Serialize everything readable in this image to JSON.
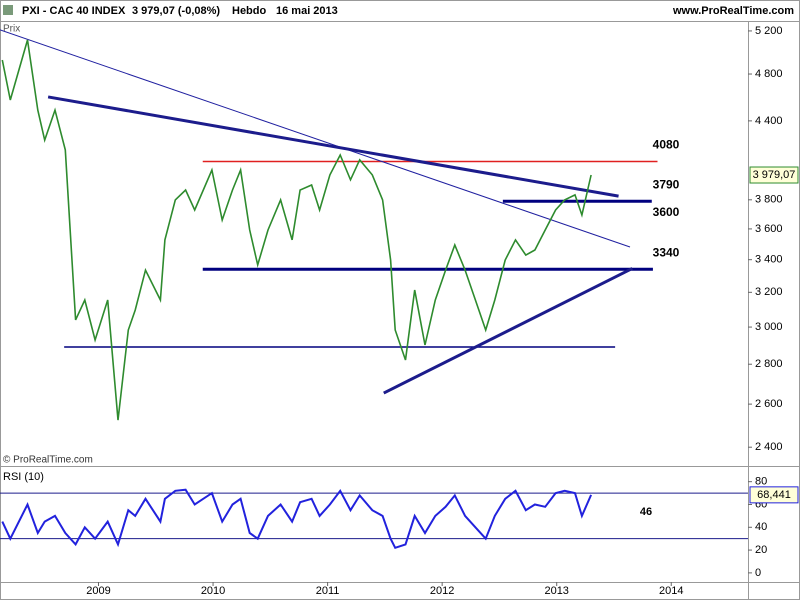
{
  "header": {
    "title": "PXI - CAC 40 INDEX",
    "last_quote": "3 979,07 (-0,08%)",
    "period": "Hebdo",
    "date": "16 mai 2013",
    "source": "www.ProRealTime.com"
  },
  "chart_data": [
    {
      "type": "line",
      "y_label": "Prix",
      "watermark": "© ProRealTime.com",
      "log_scale": true,
      "xlim": [
        2008.14,
        2014.67
      ],
      "ylim": [
        2322,
        5287
      ],
      "yticks": [
        {
          "value": 2400,
          "label": "2 400"
        },
        {
          "value": 2600,
          "label": "2 600"
        },
        {
          "value": 2800,
          "label": "2 800"
        },
        {
          "value": 3000,
          "label": "3 000"
        },
        {
          "value": 3200,
          "label": "3 200"
        },
        {
          "value": 3400,
          "label": "3 400"
        },
        {
          "value": 3600,
          "label": "3 600"
        },
        {
          "value": 3800,
          "label": "3 800"
        },
        {
          "value": 4400,
          "label": "4 400"
        },
        {
          "value": 4800,
          "label": "4 800"
        },
        {
          "value": 5200,
          "label": "5 200"
        }
      ],
      "x": [
        2008.16,
        2008.23,
        2008.38,
        2008.47,
        2008.53,
        2008.62,
        2008.71,
        2008.8,
        2008.88,
        2008.97,
        2009.08,
        2009.17,
        2009.26,
        2009.32,
        2009.41,
        2009.54,
        2009.58,
        2009.67,
        2009.76,
        2009.84,
        2009.99,
        2010.08,
        2010.17,
        2010.24,
        2010.32,
        2010.39,
        2010.48,
        2010.59,
        2010.69,
        2010.76,
        2010.86,
        2010.93,
        2011.02,
        2011.11,
        2011.2,
        2011.28,
        2011.39,
        2011.48,
        2011.55,
        2011.59,
        2011.68,
        2011.76,
        2011.85,
        2011.94,
        2012.03,
        2012.11,
        2012.2,
        2012.29,
        2012.38,
        2012.46,
        2012.55,
        2012.64,
        2012.73,
        2012.81,
        2012.9,
        2012.99,
        2013.07,
        2013.16,
        2013.22,
        2013.3
      ],
      "series": [
        {
          "color": "#2e8b2e",
          "values": [
            4927,
            4574,
            5113,
            4489,
            4246,
            4489,
            4169,
            3040,
            3155,
            2929,
            3155,
            2524,
            2984,
            3096,
            3335,
            3155,
            3527,
            3799,
            3870,
            3729,
            4016,
            3660,
            3870,
            4016,
            3593,
            3367,
            3593,
            3799,
            3527,
            3870,
            3906,
            3729,
            3980,
            4130,
            3944,
            4093,
            3980,
            3799,
            3398,
            2984,
            2822,
            3214,
            2902,
            3155,
            3335,
            3494,
            3335,
            3155,
            2984,
            3155,
            3398,
            3527,
            3429,
            3462,
            3593,
            3729,
            3799,
            3835,
            3694,
            3979.07
          ]
        }
      ],
      "last_value": {
        "value": 3979.07,
        "label": "3 979,07"
      },
      "levels": [
        {
          "value": 4080,
          "label": "4080",
          "x": [
            2009.91,
            2013.88
          ],
          "color": "#e02020",
          "bold": false
        },
        {
          "value": 3790,
          "label": "3790",
          "x": [
            2012.53,
            2013.83
          ],
          "color": "#00007f",
          "bold": true
        },
        {
          "value": 3600,
          "label": "3600"
        },
        {
          "value": 3340,
          "label": "3340",
          "x": [
            2009.91,
            2013.84
          ],
          "color": "#00007f",
          "bold": true
        },
        {
          "value": 2891,
          "x": [
            2008.7,
            2013.51
          ],
          "color": "#00007f",
          "bold": false
        }
      ],
      "trendlines": [
        {
          "x": [
            2008.14,
            2013.64
          ],
          "y": [
            5210,
            3481
          ],
          "color": "#2020a0",
          "bold": false
        },
        {
          "x": [
            2008.56,
            2013.54
          ],
          "y": [
            4600,
            3826
          ],
          "color": "#1c1c8c",
          "bold": true
        },
        {
          "x": [
            2011.49,
            2013.66
          ],
          "y": [
            2654,
            3345
          ],
          "color": "#1c1c8c",
          "bold": true
        }
      ]
    },
    {
      "type": "line",
      "title": "RSI (10)",
      "note": "46",
      "xlim": [
        2008.14,
        2014.67
      ],
      "ylim": [
        -8,
        92
      ],
      "yticks": [
        0,
        20,
        40,
        60,
        80
      ],
      "xticks": [
        2009,
        2010,
        2011,
        2012,
        2013,
        2014
      ],
      "bands": [
        30,
        70
      ],
      "series": [
        {
          "color": "#2222dd",
          "values": [
            45,
            30,
            60,
            35,
            45,
            50,
            35,
            25,
            40,
            30,
            45,
            25,
            55,
            50,
            65,
            45,
            65,
            72,
            73,
            60,
            70,
            45,
            60,
            65,
            35,
            30,
            50,
            60,
            45,
            62,
            65,
            50,
            60,
            72,
            55,
            68,
            55,
            50,
            30,
            22,
            25,
            50,
            35,
            50,
            58,
            68,
            50,
            40,
            30,
            50,
            65,
            72,
            55,
            60,
            58,
            70,
            72,
            70,
            50,
            68.441
          ]
        }
      ],
      "last_value": {
        "value": 68.441,
        "label": "68,441"
      }
    }
  ]
}
